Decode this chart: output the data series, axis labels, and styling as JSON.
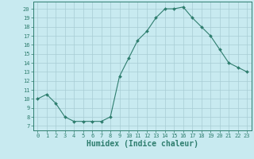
{
  "x": [
    0,
    1,
    2,
    3,
    4,
    5,
    6,
    7,
    8,
    9,
    10,
    11,
    12,
    13,
    14,
    15,
    16,
    17,
    18,
    19,
    20,
    21,
    22,
    23
  ],
  "y": [
    10,
    10.5,
    9.5,
    8,
    7.5,
    7.5,
    7.5,
    7.5,
    8,
    12.5,
    14.5,
    16.5,
    17.5,
    19,
    20,
    20,
    20.2,
    19,
    18,
    17,
    15.5,
    14,
    13.5,
    13
  ],
  "line_color": "#2e7d6e",
  "marker": "D",
  "marker_size": 2,
  "bg_color": "#c8eaf0",
  "grid_color": "#a8cdd4",
  "tick_color": "#2e7d6e",
  "xlabel": "Humidex (Indice chaleur)",
  "xlabel_fontsize": 7,
  "ylabel_ticks": [
    7,
    8,
    9,
    10,
    11,
    12,
    13,
    14,
    15,
    16,
    17,
    18,
    19,
    20
  ],
  "ylim": [
    6.5,
    20.8
  ],
  "xlim": [
    -0.5,
    23.5
  ]
}
